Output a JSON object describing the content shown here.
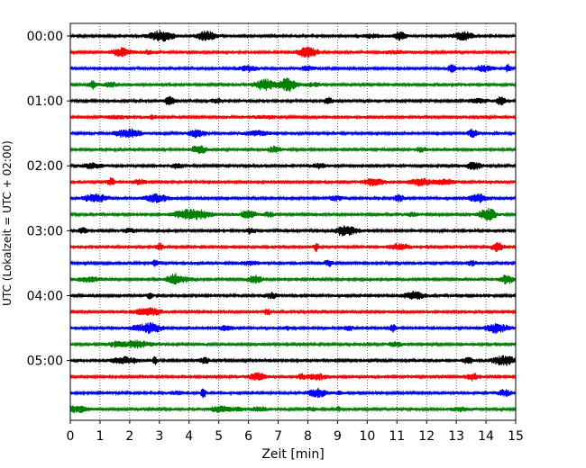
{
  "chart_data": {
    "type": "line",
    "title": "",
    "xlabel": "Zeit  [min]",
    "ylabel": "UTC (Lokalzeit = UTC + 02:00)",
    "xlim": [
      0,
      15
    ],
    "x_ticks": [
      "0",
      "1",
      "2",
      "3",
      "4",
      "5",
      "6",
      "7",
      "8",
      "9",
      "10",
      "11",
      "12",
      "13",
      "14",
      "15"
    ],
    "y_ticks": [
      "00:00",
      "01:00",
      "02:00",
      "03:00",
      "04:00",
      "05:00"
    ],
    "grid": "vertical dotted lines at each minute",
    "trace_interval_minutes": 15,
    "trace_count": 24,
    "colors": [
      "#000000",
      "#ff0000",
      "#0000ff",
      "#008000"
    ],
    "series": [
      {
        "start": "00:00",
        "color": "#000000"
      },
      {
        "start": "00:15",
        "color": "#ff0000"
      },
      {
        "start": "00:30",
        "color": "#0000ff"
      },
      {
        "start": "00:45",
        "color": "#008000"
      },
      {
        "start": "01:00",
        "color": "#000000"
      },
      {
        "start": "01:15",
        "color": "#ff0000"
      },
      {
        "start": "01:30",
        "color": "#0000ff"
      },
      {
        "start": "01:45",
        "color": "#008000"
      },
      {
        "start": "02:00",
        "color": "#000000"
      },
      {
        "start": "02:15",
        "color": "#ff0000"
      },
      {
        "start": "02:30",
        "color": "#0000ff"
      },
      {
        "start": "02:45",
        "color": "#008000"
      },
      {
        "start": "03:00",
        "color": "#000000"
      },
      {
        "start": "03:15",
        "color": "#ff0000"
      },
      {
        "start": "03:30",
        "color": "#0000ff"
      },
      {
        "start": "03:45",
        "color": "#008000"
      },
      {
        "start": "04:00",
        "color": "#000000"
      },
      {
        "start": "04:15",
        "color": "#ff0000"
      },
      {
        "start": "04:30",
        "color": "#0000ff"
      },
      {
        "start": "04:45",
        "color": "#008000"
      },
      {
        "start": "05:00",
        "color": "#000000"
      },
      {
        "start": "05:15",
        "color": "#ff0000"
      },
      {
        "start": "05:30",
        "color": "#0000ff"
      },
      {
        "start": "05:45",
        "color": "#008000"
      }
    ]
  }
}
